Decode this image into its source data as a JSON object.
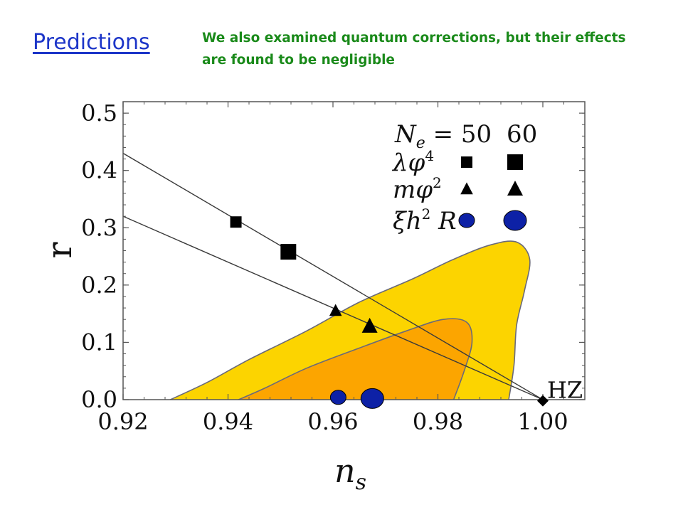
{
  "slide": {
    "title": "Predictions",
    "note_line1": "We also examined quantum corrections, but their effects",
    "note_line2": "are found to be negligible"
  },
  "chart_data": {
    "type": "scatter",
    "xlabel": "n",
    "xlabel_sub": "s",
    "ylabel": "r",
    "xlim": [
      0.92,
      1.008
    ],
    "ylim": [
      0,
      0.52
    ],
    "xticks": [
      0.92,
      0.94,
      0.96,
      0.98,
      1.0
    ],
    "xtick_labels": [
      "0.92",
      "0.94",
      "0.96",
      "0.98",
      "1.00"
    ],
    "yticks": [
      0.0,
      0.1,
      0.2,
      0.3,
      0.4,
      0.5
    ],
    "ytick_labels": [
      "0.0",
      "0.1",
      "0.2",
      "0.3",
      "0.4",
      "0.5"
    ],
    "colors": {
      "outer_region": "#fcd400",
      "inner_region": "#fca500",
      "circle": "#0d21a6",
      "marker": "#000000"
    },
    "regions": [
      {
        "name": "outer-contour",
        "color": "#fcd400",
        "points": [
          [
            0.929,
            0.0
          ],
          [
            0.936,
            0.03
          ],
          [
            0.944,
            0.07
          ],
          [
            0.955,
            0.12
          ],
          [
            0.965,
            0.17
          ],
          [
            0.975,
            0.21
          ],
          [
            0.983,
            0.245
          ],
          [
            0.99,
            0.27
          ],
          [
            0.995,
            0.275
          ],
          [
            0.9975,
            0.245
          ],
          [
            0.9965,
            0.19
          ],
          [
            0.995,
            0.13
          ],
          [
            0.9945,
            0.06
          ],
          [
            0.9935,
            0.0
          ]
        ]
      },
      {
        "name": "inner-contour",
        "color": "#fca500",
        "points": [
          [
            0.942,
            0.0
          ],
          [
            0.947,
            0.02
          ],
          [
            0.955,
            0.055
          ],
          [
            0.965,
            0.09
          ],
          [
            0.974,
            0.12
          ],
          [
            0.981,
            0.14
          ],
          [
            0.9855,
            0.135
          ],
          [
            0.9865,
            0.1
          ],
          [
            0.985,
            0.05
          ],
          [
            0.983,
            0.0
          ]
        ]
      }
    ],
    "lines": [
      {
        "name": "lambda-phi4-line",
        "points": [
          [
            0.92,
            0.43
          ],
          [
            1.0,
            0.0
          ]
        ]
      },
      {
        "name": "m-phi2-line",
        "points": [
          [
            0.92,
            0.32
          ],
          [
            1.0,
            0.0
          ]
        ]
      }
    ],
    "legend": {
      "header_prefix": "N",
      "header_sub": "e",
      "header_eq": " = 50",
      "header_60": "60",
      "rows": [
        {
          "label": "λφ",
          "sup": "4",
          "shape": "square"
        },
        {
          "label": "mφ",
          "sup": "2",
          "shape": "triangle"
        },
        {
          "label": "ξh",
          "sup": "2",
          "label_tail": " R",
          "shape": "circle"
        }
      ]
    },
    "series": [
      {
        "name": "λφ4",
        "shape": "square",
        "points": [
          {
            "Ne": 50,
            "x": 0.9415,
            "y": 0.31
          },
          {
            "Ne": 60,
            "x": 0.9515,
            "y": 0.258
          }
        ]
      },
      {
        "name": "mφ2",
        "shape": "triangle",
        "points": [
          {
            "Ne": 50,
            "x": 0.9605,
            "y": 0.155
          },
          {
            "Ne": 60,
            "x": 0.967,
            "y": 0.128
          }
        ]
      },
      {
        "name": "ξh2 R",
        "shape": "circle",
        "points": [
          {
            "Ne": 50,
            "x": 0.961,
            "y": 0.004
          },
          {
            "Ne": 60,
            "x": 0.9675,
            "y": 0.002
          }
        ]
      },
      {
        "name": "HZ",
        "shape": "diamond",
        "points": [
          {
            "x": 1.0,
            "y": -0.002,
            "label": "HZ"
          }
        ]
      }
    ]
  }
}
